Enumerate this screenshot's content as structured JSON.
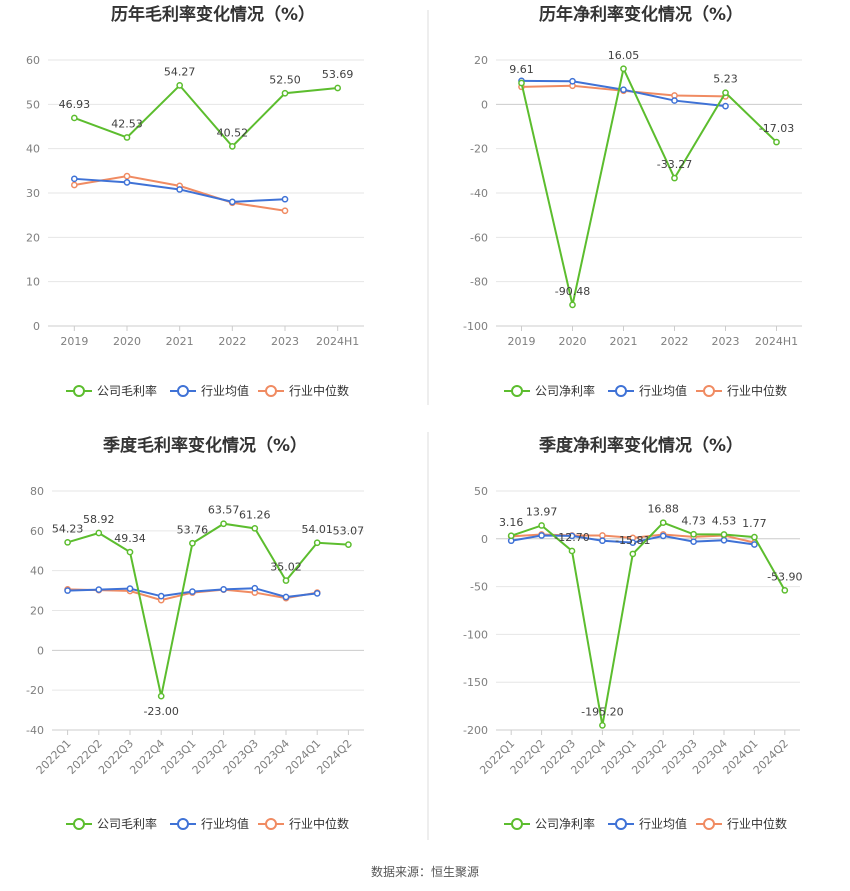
{
  "colors": {
    "company": "#5cbd2e",
    "industry_avg": "#3f72d6",
    "industry_median": "#f08b62",
    "grid": "#e6e6e6",
    "divider": "#dddddd"
  },
  "legend_labels": {
    "gross": [
      "公司毛利率",
      "行业均值",
      "行业中位数"
    ],
    "net": [
      "公司净利率",
      "行业均值",
      "行业中位数"
    ]
  },
  "source_text": "数据来源：恒生聚源",
  "chart_data": [
    {
      "id": "annual-gross",
      "type": "line",
      "title": "历年毛利率变化情况（%）",
      "categories": [
        "2019",
        "2020",
        "2021",
        "2022",
        "2023",
        "2024H1"
      ],
      "ylim": [
        0,
        60
      ],
      "yticks": [
        0,
        10,
        20,
        30,
        40,
        50,
        60
      ],
      "grid": true,
      "legend_position": "bottom",
      "xlabel_rotate": false,
      "series": [
        {
          "name": "公司毛利率",
          "values": [
            46.93,
            42.53,
            54.27,
            40.52,
            52.5,
            53.69
          ],
          "labels": [
            "46.93",
            "42.53",
            "54.27",
            "40.52",
            "52.50",
            "53.69"
          ],
          "label_pos": [
            "above",
            "above",
            "above",
            "above",
            "above",
            "above"
          ]
        },
        {
          "name": "行业均值",
          "values": [
            33.2,
            32.4,
            30.8,
            28.0,
            28.6,
            null
          ]
        },
        {
          "name": "行业中位数",
          "values": [
            31.8,
            33.8,
            31.6,
            27.8,
            26.0,
            null
          ]
        }
      ]
    },
    {
      "id": "annual-net",
      "type": "line",
      "title": "历年净利率变化情况（%）",
      "categories": [
        "2019",
        "2020",
        "2021",
        "2022",
        "2023",
        "2024H1"
      ],
      "ylim": [
        -100,
        20
      ],
      "yticks": [
        -100,
        -80,
        -60,
        -40,
        -20,
        0,
        20
      ],
      "grid": true,
      "legend_position": "bottom",
      "xlabel_rotate": false,
      "series": [
        {
          "name": "公司净利率",
          "values": [
            9.61,
            -90.48,
            16.05,
            -33.27,
            5.23,
            -17.03
          ],
          "labels": [
            "9.61",
            "-90.48",
            "16.05",
            "-33.27",
            "5.23",
            "-17.03"
          ],
          "label_pos": [
            "above",
            "above",
            "above",
            "above",
            "above",
            "above"
          ]
        },
        {
          "name": "行业均值",
          "values": [
            10.6,
            10.4,
            6.6,
            1.7,
            -0.8,
            null
          ]
        },
        {
          "name": "行业中位数",
          "values": [
            7.9,
            8.4,
            6.1,
            4.0,
            3.6,
            null
          ]
        }
      ]
    },
    {
      "id": "quarterly-gross",
      "type": "line",
      "title": "季度毛利率变化情况（%）",
      "categories": [
        "2022Q1",
        "2022Q2",
        "2022Q3",
        "2022Q4",
        "2023Q1",
        "2023Q2",
        "2023Q3",
        "2023Q4",
        "2024Q1",
        "2024Q2"
      ],
      "ylim": [
        -40,
        80
      ],
      "yticks": [
        -40,
        -20,
        0,
        20,
        40,
        60,
        80
      ],
      "grid": true,
      "legend_position": "bottom",
      "xlabel_rotate": true,
      "series": [
        {
          "name": "公司毛利率",
          "values": [
            54.23,
            58.92,
            49.34,
            -23.0,
            53.76,
            63.57,
            61.26,
            35.02,
            54.01,
            53.07
          ],
          "labels": [
            "54.23",
            "58.92",
            "49.34",
            "-23.00",
            "53.76",
            "63.57",
            "61.26",
            "35.02",
            "54.01",
            "53.07"
          ],
          "label_pos": [
            "above",
            "above",
            "above",
            "below",
            "above",
            "above",
            "above",
            "above",
            "above",
            "above"
          ]
        },
        {
          "name": "行业均值",
          "values": [
            30.0,
            30.5,
            31.0,
            27.2,
            29.5,
            30.6,
            31.2,
            26.8,
            28.6,
            null
          ]
        },
        {
          "name": "行业中位数",
          "values": [
            30.6,
            30.2,
            29.8,
            25.2,
            29.0,
            30.5,
            29.0,
            26.2,
            29.0,
            null
          ]
        }
      ]
    },
    {
      "id": "quarterly-net",
      "type": "line",
      "title": "季度净利率变化情况（%）",
      "categories": [
        "2022Q1",
        "2022Q2",
        "2022Q3",
        "2022Q4",
        "2023Q1",
        "2023Q2",
        "2023Q3",
        "2023Q4",
        "2024Q1",
        "2024Q2"
      ],
      "ylim": [
        -200,
        50
      ],
      "yticks": [
        -200,
        -150,
        -100,
        -50,
        0,
        50
      ],
      "grid": true,
      "legend_position": "bottom",
      "xlabel_rotate": true,
      "series": [
        {
          "name": "公司净利率",
          "values": [
            3.16,
            13.97,
            -12.7,
            -195.2,
            -15.81,
            16.88,
            4.73,
            4.53,
            1.77,
            -53.9
          ],
          "labels": [
            "3.16",
            "13.97",
            "-12.70",
            "-195.20",
            "-15.81",
            "16.88",
            "4.73",
            "4.53",
            "1.77",
            "-53.90"
          ],
          "label_pos": [
            "above",
            "above",
            "above",
            "above",
            "above",
            "above",
            "above",
            "above",
            "above",
            "above"
          ]
        },
        {
          "name": "行业均值",
          "values": [
            -2.0,
            3.5,
            3.0,
            -2.0,
            -4.0,
            3.0,
            -3.0,
            -1.5,
            -6.0,
            null
          ]
        },
        {
          "name": "行业中位数",
          "values": [
            2.5,
            4.5,
            3.5,
            3.5,
            1.0,
            4.5,
            2.0,
            3.5,
            -4.0,
            null
          ]
        }
      ]
    }
  ]
}
